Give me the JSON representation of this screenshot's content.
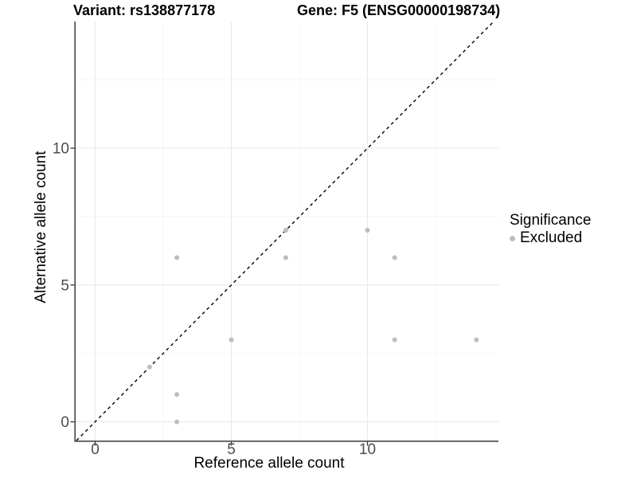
{
  "figure": {
    "title_variant": "Variant: rs138877178",
    "title_gene": "Gene: F5 (ENSG00000198734)"
  },
  "chart_data": {
    "type": "scatter",
    "title": "Variant: rs138877178   Gene: F5 (ENSG00000198734)",
    "xlabel": "Reference allele count",
    "ylabel": "Alternative allele count",
    "xlim": [
      -0.7,
      14.8
    ],
    "ylim": [
      -0.7,
      14.6
    ],
    "x_major_ticks": [
      0,
      5,
      10
    ],
    "y_major_ticks": [
      0,
      5,
      10
    ],
    "x_minor_gridlines": [
      2.5,
      7.5,
      12.5
    ],
    "y_minor_gridlines": [
      2.5,
      7.5,
      12.5
    ],
    "grid": "major and minor, light gray on white",
    "reference_line": {
      "kind": "identity y=x",
      "style": "dashed",
      "color": "#000000"
    },
    "series": [
      {
        "name": "Excluded",
        "color": "#bdbdbd",
        "points": [
          [
            2,
            2
          ],
          [
            3,
            0
          ],
          [
            3,
            1
          ],
          [
            3,
            6
          ],
          [
            5,
            3
          ],
          [
            7,
            6
          ],
          [
            7,
            7
          ],
          [
            10,
            7
          ],
          [
            11,
            6
          ],
          [
            11,
            3
          ],
          [
            14,
            3
          ]
        ]
      }
    ],
    "legend": {
      "title": "Significance",
      "position": "right",
      "entries": [
        {
          "label": "Excluded",
          "color": "#bdbdbd"
        }
      ]
    }
  },
  "colors": {
    "point": "#bdbdbd",
    "grid_major": "#e8e8e8",
    "grid_minor": "#f4f4f4",
    "axis_line": "#474747",
    "tick_label": "#4d4d4d",
    "reference_line": "#000000",
    "background": "#ffffff"
  }
}
